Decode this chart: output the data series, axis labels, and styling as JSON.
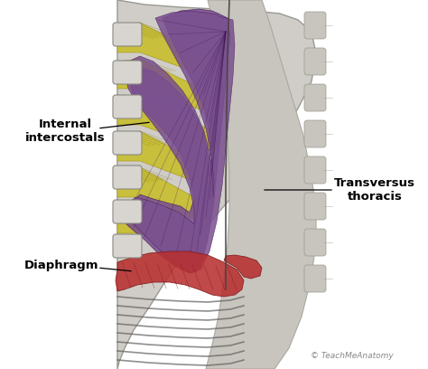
{
  "background_color": "#ffffff",
  "labels": {
    "internal_intercostals": "Internal\nintercostals",
    "transversus_thoracis": "Transversus\nthoracis",
    "diaphragm": "Diaphragm"
  },
  "watermark": "© TeachMeAnatomy",
  "colors": {
    "yellow_muscle": "#c8be30",
    "purple_muscle": "#7a5090",
    "red_muscle": "#b83030",
    "rib_gray": "#c0bdb8",
    "rib_edge": "#888880",
    "sternum_gray": "#b8b5b0",
    "body_bg": "#d0cdc8",
    "spine_gray": "#c8c5c0",
    "dark_gray": "#606060"
  }
}
